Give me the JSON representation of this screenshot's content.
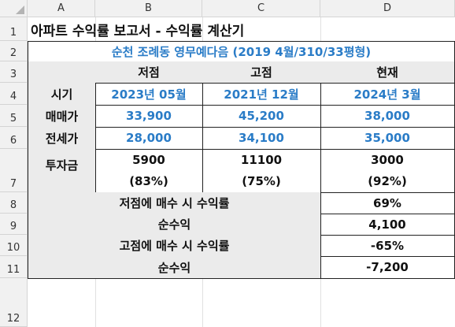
{
  "columns": [
    "A",
    "B",
    "C",
    "D"
  ],
  "rows": [
    "1",
    "2",
    "3",
    "4",
    "5",
    "6",
    "7",
    "8",
    "9",
    "10",
    "11",
    "12"
  ],
  "sheet": {
    "title": "아파트 수익률 보고서 - 수익률 계산기",
    "subtitle": "순천 조례동 영무예다음 (2019 4월/310/33평형)",
    "headers": {
      "low": "저점",
      "high": "고점",
      "now": "현재"
    },
    "period": {
      "label": "시기",
      "low": "2023년 05월",
      "high": "2021년 12월",
      "now": "2024년 3월"
    },
    "sale": {
      "label": "매매가",
      "low": "33,900",
      "high": "45,200",
      "now": "38,000"
    },
    "jeonse": {
      "label": "전세가",
      "low": "28,000",
      "high": "34,100",
      "now": "35,000"
    },
    "invest": {
      "label": "투자금",
      "low": "5900",
      "low_pct": "(83%)",
      "high": "11100",
      "high_pct": "(75%)",
      "now": "3000",
      "now_pct": "(92%)"
    },
    "buy_low": {
      "label": "저점에 매수 시 수익률",
      "value": "69%"
    },
    "profit_low": {
      "label": "순수익",
      "value": "4,100"
    },
    "buy_high": {
      "label": "고점에 매수 시 수익률",
      "value": "-65%"
    },
    "profit_high": {
      "label": "순수익",
      "value": "-7,200"
    }
  },
  "colors": {
    "accent_blue": "#2a7cc7",
    "header_gray": "#ebebeb",
    "border": "#222222"
  }
}
